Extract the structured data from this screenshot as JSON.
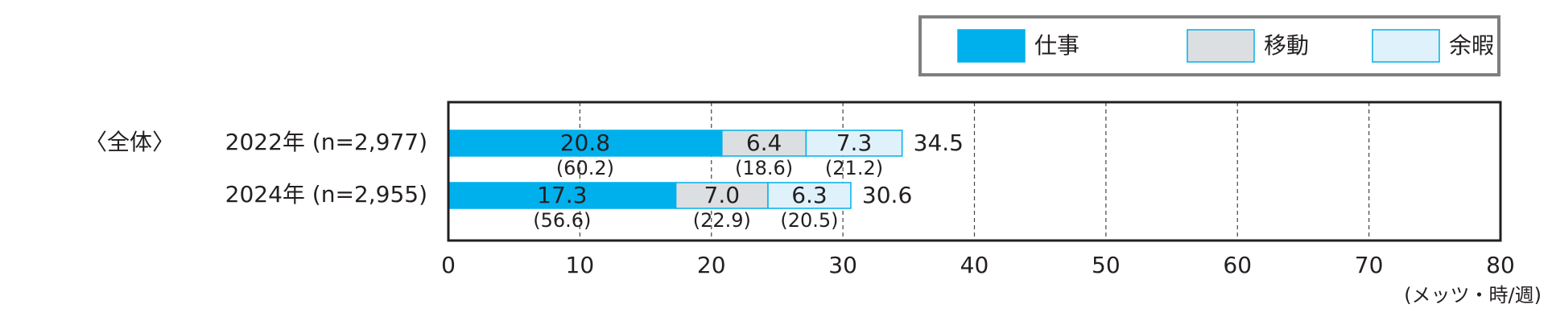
{
  "chart_data": {
    "type": "stacked-bar-horizontal",
    "group_label": "〈全体〉",
    "categories": [
      "2022年 (n=2,977)",
      "2024年 (n=2,955)"
    ],
    "series": [
      {
        "name": "仕事",
        "color": "#00b0ec",
        "values": [
          20.8,
          17.3
        ],
        "value_labels": [
          "20.8",
          "17.3"
        ],
        "shares": [
          60.2,
          56.6
        ],
        "share_labels": [
          "(60.2)",
          "(56.6)"
        ]
      },
      {
        "name": "移動",
        "color": "#dcdfe1",
        "values": [
          6.4,
          7.0
        ],
        "value_labels": [
          "6.4",
          "7.0"
        ],
        "shares": [
          18.6,
          22.9
        ],
        "share_labels": [
          "(18.6)",
          "(22.9)"
        ]
      },
      {
        "name": "余暇",
        "color": "#dff2fb",
        "values": [
          7.3,
          6.3
        ],
        "value_labels": [
          "7.3",
          "6.3"
        ],
        "shares": [
          21.2,
          20.5
        ],
        "share_labels": [
          "(21.2)",
          "(20.5)"
        ]
      }
    ],
    "totals": [
      34.5,
      30.6
    ],
    "xlabel": "(メッツ・時/週)",
    "xlim": [
      0,
      80
    ],
    "xticks": [
      0,
      10,
      20,
      30,
      40,
      50,
      60,
      70,
      80
    ],
    "grid": true
  }
}
